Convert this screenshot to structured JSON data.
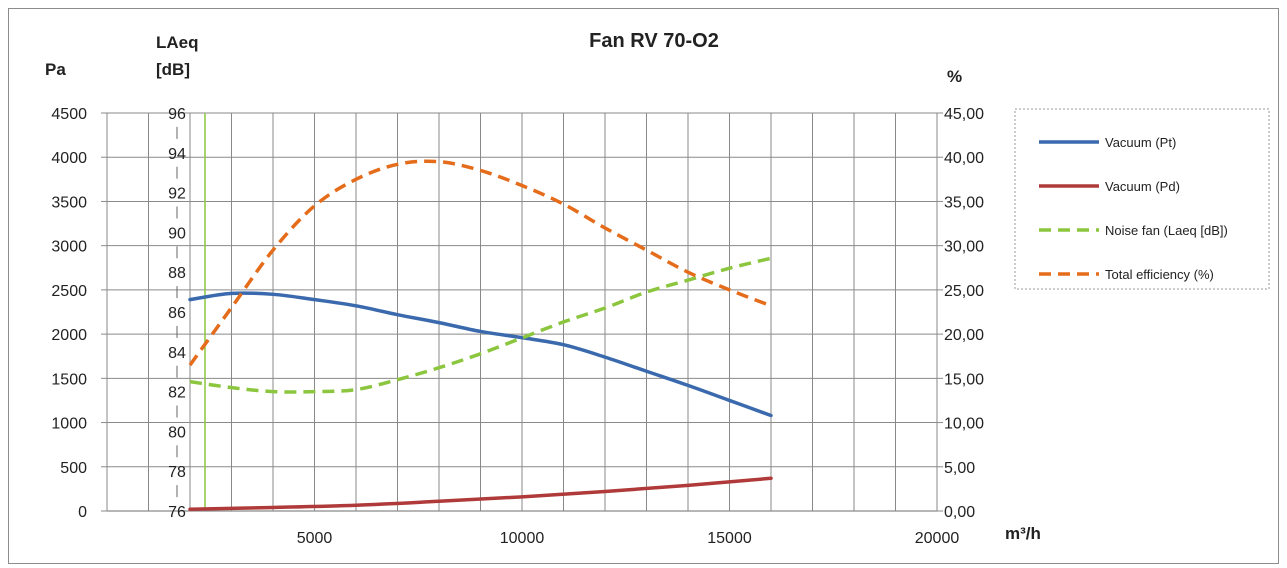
{
  "chart_data": {
    "type": "line",
    "title": "Fan RV 70-O2",
    "x_unit_label": "m³/h",
    "x_ticks": [
      "5000",
      "10000",
      "15000",
      "20000"
    ],
    "xlim": [
      0,
      20000
    ],
    "axes": {
      "pa": {
        "label": "Pa",
        "ticks": [
          "0",
          "500",
          "1000",
          "1500",
          "2000",
          "2500",
          "3000",
          "3500",
          "4000",
          "4500"
        ],
        "ylim": [
          0,
          4500
        ]
      },
      "laeq": {
        "label_line1": "LAeq",
        "label_line2": "[dB]",
        "ticks": [
          "76",
          "78",
          "80",
          "82",
          "84",
          "86",
          "88",
          "90",
          "92",
          "94",
          "96"
        ],
        "ylim": [
          76,
          96
        ]
      },
      "pct": {
        "label": "%",
        "ticks": [
          "0,00",
          "5,00",
          "10,00",
          "15,00",
          "20,00",
          "25,00",
          "30,00",
          "35,00",
          "40,00",
          "45,00"
        ],
        "ylim": [
          0,
          45
        ]
      }
    },
    "grid": true,
    "legend_position": "right",
    "series": [
      {
        "name": "Vacuum (Pt)",
        "axis": "pa",
        "color": "#3a6aad",
        "dash": false,
        "x": [
          2000,
          3000,
          4000,
          5000,
          6000,
          7000,
          8000,
          9000,
          10000,
          11000,
          12000,
          13000,
          14000,
          15000,
          16000
        ],
        "y": [
          2390,
          2460,
          2450,
          2390,
          2320,
          2220,
          2130,
          2030,
          1960,
          1880,
          1740,
          1580,
          1420,
          1250,
          1080
        ]
      },
      {
        "name": "Vacuum (Pd)",
        "axis": "pa",
        "color": "#b03a3a",
        "dash": false,
        "x": [
          2000,
          4000,
          6000,
          8000,
          10000,
          12000,
          14000,
          16000
        ],
        "y": [
          20,
          40,
          65,
          110,
          160,
          220,
          290,
          370
        ]
      },
      {
        "name": "Noise fan (Laeq [dB])",
        "axis": "laeq",
        "color": "#8cc63f",
        "dash": true,
        "x": [
          2000,
          3000,
          4000,
          5000,
          6000,
          7000,
          8000,
          9000,
          10000,
          11000,
          12000,
          13000,
          14000,
          15000,
          16000
        ],
        "y": [
          82.5,
          82.2,
          82.0,
          82.0,
          82.1,
          82.6,
          83.2,
          83.9,
          84.7,
          85.5,
          86.2,
          87.0,
          87.6,
          88.2,
          88.7
        ]
      },
      {
        "name": "Total efficiency (%)",
        "axis": "pct",
        "color": "#e46c1a",
        "dash": true,
        "x": [
          2000,
          3000,
          4000,
          5000,
          6000,
          7000,
          8000,
          9000,
          10000,
          11000,
          12000,
          13000,
          14000,
          15000,
          16000
        ],
        "y": [
          16.5,
          23.0,
          29.5,
          34.5,
          37.5,
          39.2,
          39.5,
          38.5,
          36.8,
          34.7,
          32.0,
          29.5,
          27.0,
          25.0,
          23.2
        ]
      }
    ]
  }
}
